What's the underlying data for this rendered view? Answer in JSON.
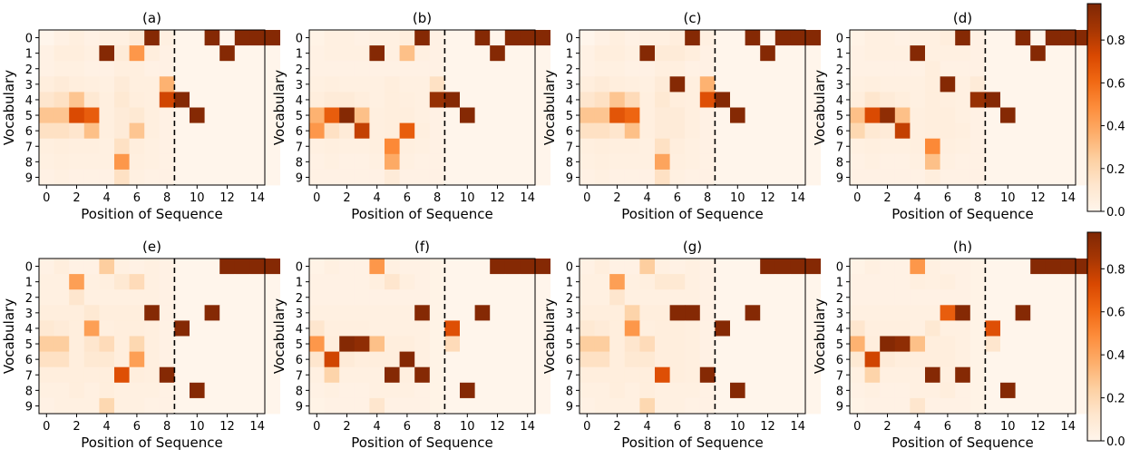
{
  "chart_data": {
    "type": "heatmap",
    "xlabel": "Position of Sequence",
    "ylabel": "Vocabulary",
    "x_ticks": [
      "0",
      "2",
      "4",
      "6",
      "8",
      "10",
      "12",
      "14"
    ],
    "y_ticks": [
      "0",
      "1",
      "2",
      "3",
      "4",
      "5",
      "6",
      "7",
      "8",
      "9"
    ],
    "divider_between_positions": [
      8,
      9
    ],
    "colorbar": {
      "ticks": [
        "0.0",
        "0.2",
        "0.4",
        "0.6",
        "0.8"
      ],
      "vmin": 0.0,
      "vmax": 0.97
    },
    "panels": [
      {
        "title": "(a)",
        "cells": [
          "0 0.03 0.05 0.03 0.04 0.04 0.08 0.95 0.04 | 0 0 0.95 0 0.95 0.95 0.95",
          "0.03 0.06 0.06 0.04 0.95 0.08 0.45 0.06 0.03 | 0 0 0 0.95 0 0 0",
          "0.03 0.04 0.04 0.03 0.03 0.05 0.05 0.03 0.03 | 0 0 0 0 0 0 0",
          "0.06 0.08 0.06 0.05 0.04 0.08 0.05 0.05 0.35 | 0 0 0 0 0 0 0",
          "0.12 0.15 0.28 0.1 0.05 0.1 0.06 0.05 0.75 | 0.95 0 0 0 0 0 0",
          "0.28 0.28 0.72 0.65 0.05 0.08 0.1 0.05 0.03 | 0 0.95 0 0 0 0 0",
          "0.15 0.15 0.12 0.3 0.05 0.08 0.28 0.05 0.03 | 0 0 0 0 0 0 0",
          "0.05 0.06 0.05 0.05 0.04 0.15 0.06 0.04 0.03 | 0 0 0 0 0 0 0",
          "0.04 0.05 0.04 0.04 0.04 0.45 0.05 0.04 0.03 | 0 0 0 0 0 0 0",
          "0.03 0.04 0.03 0.03 0.03 0.15 0.04 0.03 0.03 | 0 0 0 0 0 0 0"
        ]
      },
      {
        "title": "(b)",
        "cells": [
          "0.02 0.04 0.04 0.03 0.04 0.04 0.06 0.95 0.03 | 0 0 0.95 0 0.95 0.95 0.95",
          "0.03 0.04 0.04 0.04 0.95 0.04 0.3 0.04 0.03 | 0 0 0 0.95 0 0 0",
          "0.03 0.03 0.03 0.03 0.03 0.03 0.03 0.03 0.03 | 0 0 0 0 0 0 0",
          "0.04 0.05 0.04 0.04 0.04 0.06 0.04 0.04 0.15 | 0 0 0 0 0 0 0",
          "0.06 0.08 0.08 0.06 0.04 0.06 0.05 0.04 0.9 | 0.95 0 0 0 0 0 0",
          "0.35 0.65 0.95 0.3 0.05 0.06 0.06 0.04 0.03 | 0 0.95 0 0 0 0 0",
          "0.45 0.15 0.08 0.78 0.05 0.06 0.65 0.05 0.03 | 0 0 0 0 0 0 0",
          "0.04 0.05 0.04 0.04 0.05 0.5 0.05 0.04 0.03 | 0 0 0 0 0 0 0",
          "0.03 0.04 0.03 0.03 0.04 0.38 0.04 0.03 0.03 | 0 0 0 0 0 0 0",
          "0.03 0.03 0.03 0.03 0.03 0.08 0.03 0.03 0.03 | 0 0 0 0 0 0 0"
        ]
      },
      {
        "title": "(c)",
        "cells": [
          "0 0.03 0.05 0.03 0.04 0.04 0.06 0.95 0.04 | 0 0 0.95 0 0.95 0.95 0.95",
          "0.03 0.06 0.06 0.04 0.95 0.08 0.08 0.06 0.03 | 0 0 0 0.95 0 0 0",
          "0.03 0.04 0.04 0.03 0.03 0.05 0.05 0.03 0.03 | 0 0 0 0 0 0 0",
          "0.06 0.08 0.06 0.05 0.04 0.08 0.95 0.05 0.35 | 0 0 0 0 0 0 0",
          "0.12 0.15 0.28 0.18 0.05 0.1 0.06 0.05 0.7 | 0.95 0 0 0 0 0 0",
          "0.28 0.28 0.68 0.62 0.05 0.08 0.08 0.05 0.03 | 0 0.95 0 0 0 0 0",
          "0.15 0.15 0.12 0.3 0.05 0.08 0.08 0.05 0.03 | 0 0 0 0 0 0 0",
          "0.05 0.06 0.05 0.05 0.04 0.15 0.06 0.04 0.03 | 0 0 0 0 0 0 0",
          "0.04 0.05 0.04 0.04 0.04 0.4 0.05 0.04 0.03 | 0 0 0 0 0 0 0",
          "0.03 0.04 0.03 0.03 0.03 0.15 0.04 0.03 0.03 | 0 0 0 0 0 0 0"
        ]
      },
      {
        "title": "(d)",
        "cells": [
          "0.02 0.04 0.04 0.03 0.04 0.04 0.06 0.95 0.03 | 0 0 0.95 0 0.95 0.95 0.95",
          "0.03 0.04 0.04 0.04 0.95 0.04 0.04 0.04 0.03 | 0 0 0 0.95 0 0 0",
          "0.03 0.03 0.03 0.03 0.03 0.06 0.03 0.03 0.03 | 0 0 0 0 0 0 0",
          "0.04 0.05 0.04 0.04 0.04 0.06 0.95 0.04 0.08 | 0 0 0 0 0 0 0",
          "0.06 0.12 0.08 0.06 0.04 0.06 0.05 0.04 0.9 | 0.95 0 0 0 0 0 0",
          "0.3 0.72 0.92 0.3 0.05 0.06 0.06 0.04 0.03 | 0 0.95 0 0 0 0 0",
          "0.2 0.1 0.08 0.78 0.05 0.06 0.06 0.05 0.03 | 0 0 0 0 0 0 0",
          "0.04 0.05 0.04 0.04 0.05 0.5 0.05 0.04 0.03 | 0 0 0 0 0 0 0",
          "0.03 0.04 0.03 0.03 0.04 0.3 0.04 0.03 0.03 | 0 0 0 0 0 0 0",
          "0.03 0.03 0.03 0.03 0.03 0.06 0.03 0.03 0.03 | 0 0 0 0 0 0 0"
        ]
      },
      {
        "title": "(e)",
        "cells": [
          "0.03 0.06 0.03 0.03 0.25 0.04 0.03 0.04 0.03 | 0 0 0 0.95 0.95 0.95 0.95",
          "0.04 0.04 0.42 0.04 0.05 0.1 0.18 0.04 0.03 | 0 0 0 0 0 0 0",
          "0.04 0.04 0.12 0.04 0.04 0.04 0.04 0.04 0.03 | 0 0 0 0 0 0 0",
          "0.06 0.06 0.06 0.1 0.06 0.06 0.06 0.95 0.03 | 0 0 0.95 0 0 0 0",
          "0.1 0.08 0.06 0.42 0.05 0.06 0.06 0.05 0.03 | 0.95 0 0 0 0 0 0",
          "0.25 0.25 0.06 0.12 0.18 0.06 0.2 0.05 0.03 | 0 0 0 0 0 0 0",
          "0.15 0.15 0.06 0.1 0.1 0.06 0.42 0.05 0.03 | 0 0 0 0 0 0 0",
          "0.06 0.06 0.06 0.06 0.06 0.7 0.06 0.05 0.95 | 0 0 0 0 0 0 0",
          "0.04 0.04 0.06 0.04 0.06 0.04 0.04 0.04 0.03 | 0 0.95 0 0 0 0 0",
          "0.03 0.04 0.04 0.04 0.2 0.04 0.04 0.03 0.03 | 0 0 0 0 0 0 0"
        ]
      },
      {
        "title": "(f)",
        "cells": [
          "0.02 0.04 0.03 0.03 0.45 0.04 0.03 0.03 0.02 | 0 0 0 0.95 0.95 0.95 0.95",
          "0.03 0.03 0.03 0.03 0.05 0.12 0.05 0.03 0.02 | 0 0 0 0 0 0 0",
          "0.03 0.03 0.03 0.03 0.03 0.03 0.03 0.03 0.02 | 0 0 0 0 0 0 0",
          "0.04 0.04 0.04 0.04 0.04 0.04 0.04 0.95 0.02 | 0 0 0.95 0 0 0 0",
          "0.12 0.05 0.05 0.05 0.04 0.04 0.04 0.04 0.02 | 0.7 0 0 0 0 0 0",
          "0.45 0.06 0.95 0.92 0.3 0.06 0.06 0.04 0.02 | 0.18 0 0 0 0 0 0",
          "0.12 0.75 0.08 0.06 0.06 0.06 0.95 0.04 0.02 | 0 0 0 0 0 0 0",
          "0.04 0.22 0.04 0.04 0.04 0.95 0.05 0.95 0.02 | 0 0 0 0 0 0 0",
          "0.03 0.04 0.03 0.03 0.04 0.04 0.04 0.03 0.02 | 0 0.95 0 0 0 0 0",
          "0.02 0.03 0.03 0.03 0.12 0.03 0.03 0.03 0.02 | 0 0 0 0 0 0 0"
        ]
      },
      {
        "title": "(g)",
        "cells": [
          "0.03 0.06 0.03 0.03 0.25 0.04 0.03 0.04 0.03 | 0 0 0 0.95 0.95 0.95 0.95",
          "0.04 0.04 0.42 0.04 0.05 0.1 0.1 0.04 0.03 | 0 0 0 0 0 0 0",
          "0.04 0.04 0.12 0.04 0.04 0.04 0.04 0.04 0.03 | 0 0 0 0 0 0 0",
          "0.06 0.06 0.06 0.22 0.06 0.06 0.95 0.95 0.03 | 0 0 0.95 0 0 0 0",
          "0.1 0.08 0.06 0.45 0.05 0.06 0.06 0.05 0.03 | 0.95 0 0 0 0 0 0",
          "0.25 0.25 0.06 0.12 0.18 0.06 0.06 0.05 0.03 | 0 0 0 0 0 0 0",
          "0.15 0.15 0.06 0.1 0.1 0.06 0.06 0.05 0.03 | 0 0 0 0 0 0 0",
          "0.06 0.06 0.06 0.06 0.06 0.7 0.06 0.05 0.95 | 0 0 0 0 0 0 0",
          "0.04 0.04 0.06 0.04 0.06 0.04 0.04 0.04 0.03 | 0 0.95 0 0 0 0 0",
          "0.03 0.04 0.04 0.04 0.2 0.04 0.04 0.03 0.03 | 0 0 0 0 0 0 0"
        ]
      },
      {
        "title": "(h)",
        "cells": [
          "0.02 0.04 0.03 0.03 0.45 0.04 0.03 0.03 0.02 | 0 0 0 0.95 0.95 0.95 0.95",
          "0.03 0.03 0.03 0.03 0.05 0.04 0.05 0.03 0.02 | 0 0 0 0 0 0 0",
          "0.03 0.03 0.03 0.03 0.03 0.03 0.03 0.03 0.02 | 0 0 0 0 0 0 0",
          "0.04 0.04 0.04 0.04 0.04 0.04 0.65 0.95 0.02 | 0 0 0.95 0 0 0 0",
          "0.12 0.05 0.05 0.05 0.04 0.1 0.04 0.04 0.02 | 0.7 0 0 0 0 0 0",
          "0.35 0.06 0.95 0.92 0.3 0.06 0.06 0.04 0.02 | 0.12 0 0 0 0 0 0",
          "0.1 0.75 0.08 0.06 0.06 0.06 0.06 0.04 0.02 | 0 0 0 0 0 0 0",
          "0.04 0.22 0.04 0.04 0.04 0.95 0.05 0.95 0.02 | 0 0 0 0 0 0 0",
          "0.03 0.04 0.03 0.03 0.04 0.04 0.06 0.03 0.02 | 0 0.95 0 0 0 0 0",
          "0.02 0.03 0.03 0.03 0.12 0.03 0.03 0.03 0.02 | 0 0 0 0 0 0 0"
        ]
      }
    ]
  }
}
